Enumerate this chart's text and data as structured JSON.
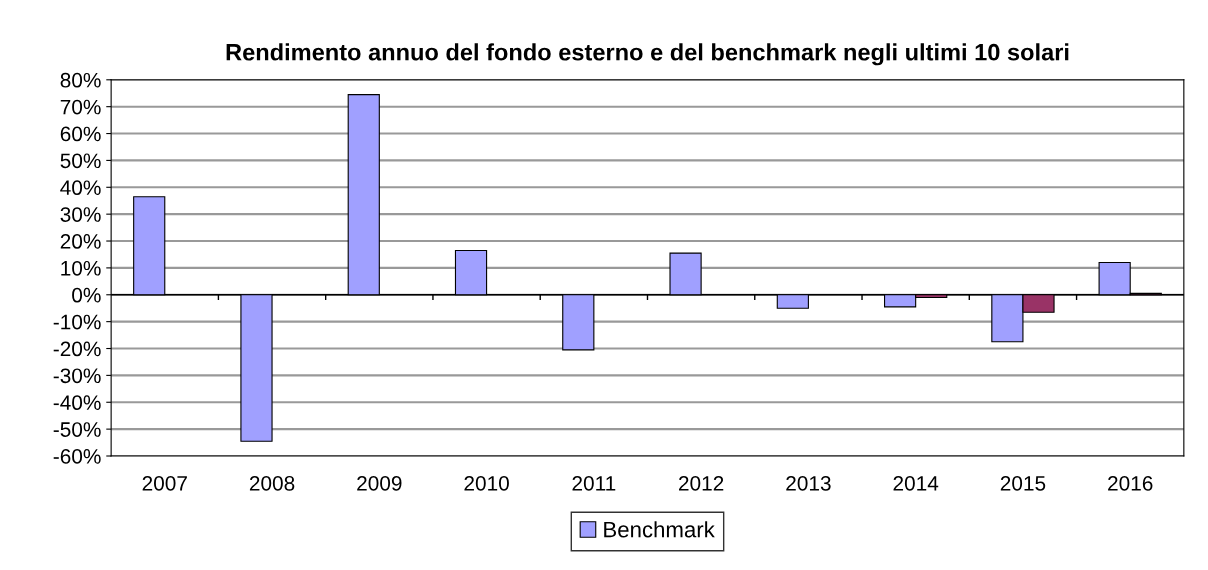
{
  "chart_data": {
    "type": "bar",
    "title": "Rendimento annuo del fondo esterno e del benchmark negli ultimi 10 solari",
    "categories": [
      "2007",
      "2008",
      "2009",
      "2010",
      "2011",
      "2012",
      "2013",
      "2014",
      "2015",
      "2016"
    ],
    "series": [
      {
        "name": "Benchmark",
        "color": "#a0a0ff",
        "values": [
          36.5,
          -54.5,
          74.5,
          16.5,
          -20.5,
          15.5,
          -5,
          -4.5,
          -17.5,
          12
        ]
      },
      {
        "color": "#993366",
        "values": [
          null,
          null,
          null,
          null,
          null,
          null,
          null,
          -1,
          -6.5,
          0.5
        ]
      }
    ],
    "ylim": [
      -60,
      80
    ],
    "yticks": [
      {
        "value": -60,
        "label": "-60%"
      },
      {
        "value": -50,
        "label": "-50%"
      },
      {
        "value": -40,
        "label": "-40%"
      },
      {
        "value": -30,
        "label": "-30%"
      },
      {
        "value": -20,
        "label": "-20%"
      },
      {
        "value": -10,
        "label": "-10%"
      },
      {
        "value": 0,
        "label": "0%"
      },
      {
        "value": 10,
        "label": "10%"
      },
      {
        "value": 20,
        "label": "20%"
      },
      {
        "value": 30,
        "label": "30%"
      },
      {
        "value": 40,
        "label": "40%"
      },
      {
        "value": 50,
        "label": "50%"
      },
      {
        "value": 60,
        "label": "60%"
      },
      {
        "value": 70,
        "label": "70%"
      },
      {
        "value": 80,
        "label": "80%"
      }
    ],
    "grid": "y",
    "legend": "bottom"
  }
}
